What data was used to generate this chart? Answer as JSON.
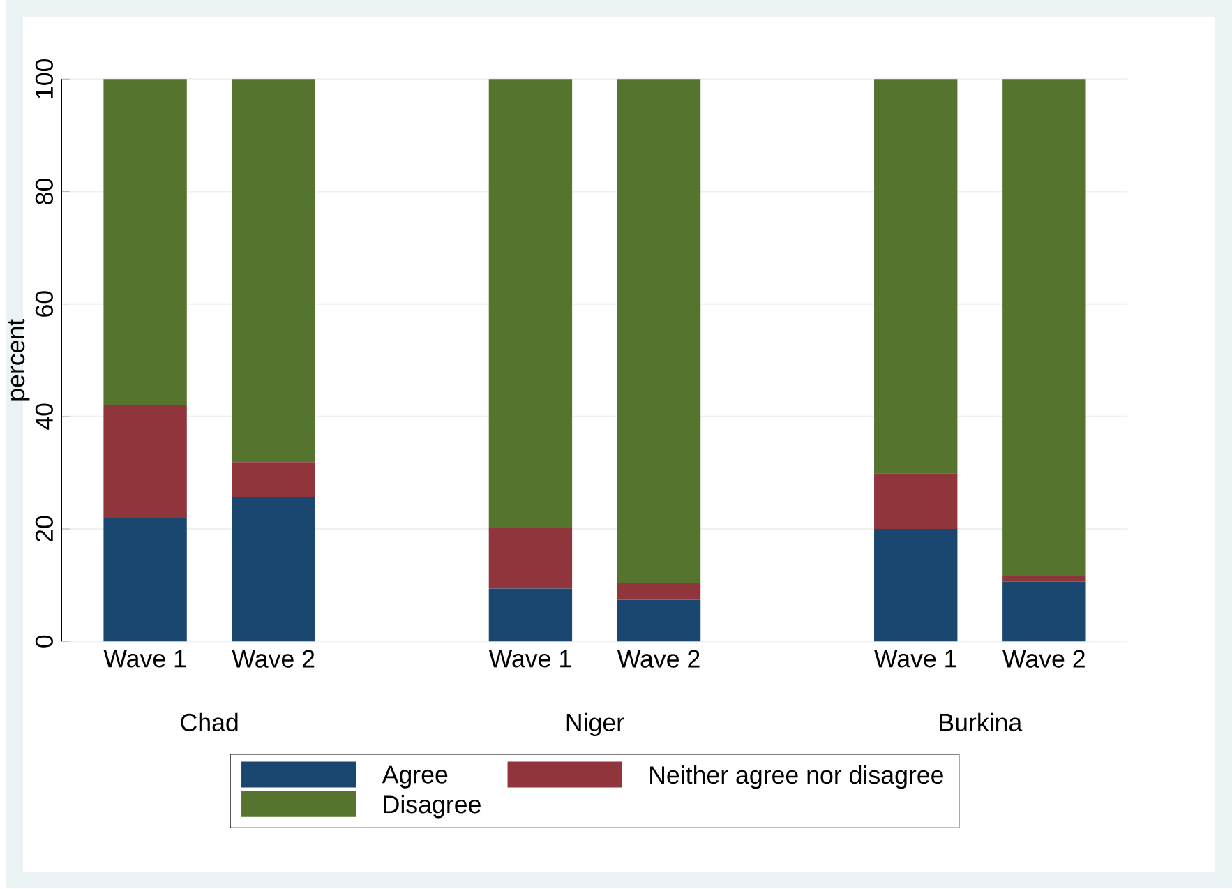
{
  "chart_data": {
    "type": "bar",
    "stacked": true,
    "ylabel": "percent",
    "categories": [
      "Wave 1",
      "Wave 2",
      null,
      "Wave 1",
      "Wave 2",
      null,
      "Wave 1",
      "Wave 2"
    ],
    "series": [
      {
        "name": "Agree",
        "color": "#1a476f",
        "values": [
          22,
          25.7,
          null,
          9.4,
          7.4,
          null,
          20,
          10.6
        ]
      },
      {
        "name": "Neither agree nor disagree",
        "color": "#90353b",
        "values": [
          20,
          6.2,
          null,
          10.8,
          3,
          null,
          9.9,
          1
        ]
      },
      {
        "name": "Disagree",
        "color": "#55752f",
        "values": [
          58,
          68.1,
          null,
          79.8,
          89.6,
          null,
          70.1,
          88.4
        ]
      }
    ],
    "annotations": [
      "Chad",
      "Niger",
      "Burkina"
    ],
    "ylim": [
      0,
      100
    ],
    "yticks": [
      0,
      20,
      40,
      60,
      80,
      100
    ],
    "grid": "y",
    "legend": "bottom"
  }
}
